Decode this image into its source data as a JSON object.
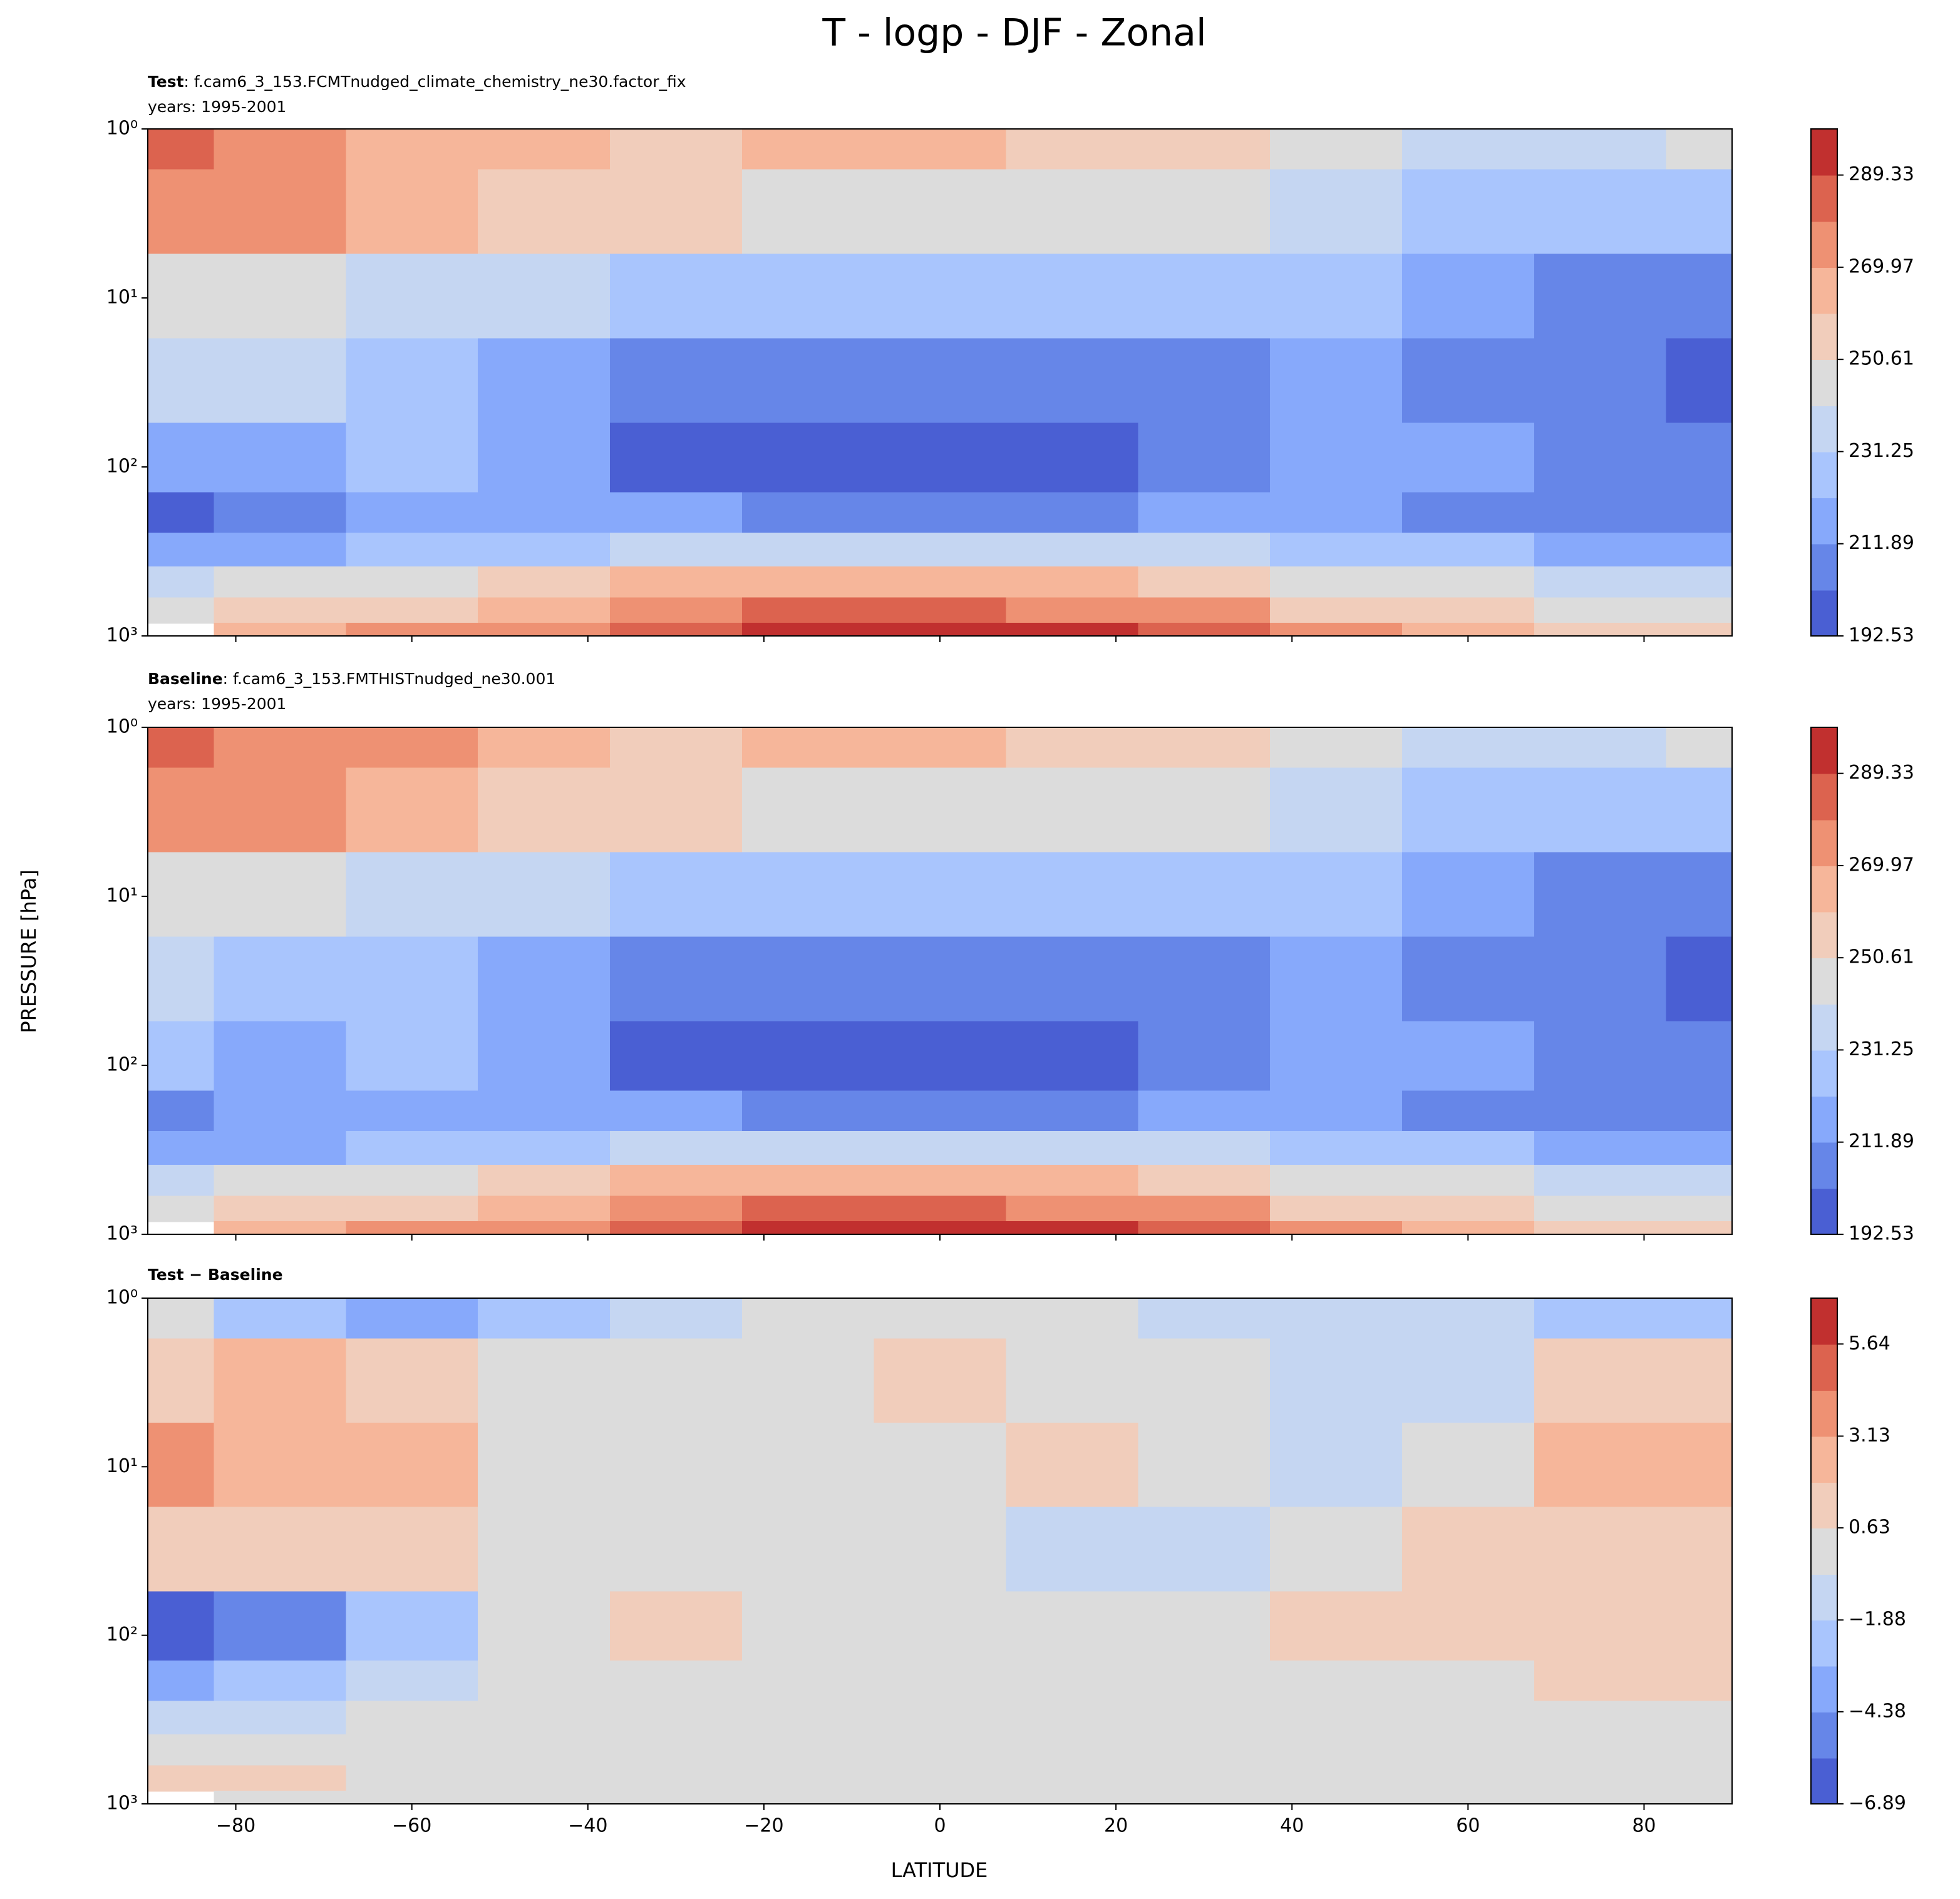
{
  "title": "T - logp - DJF - Zonal",
  "ylabel": "PRESSURE [hPa]",
  "xlabel": "LATITUDE",
  "chart_data": [
    {
      "type": "contour",
      "label": "Test",
      "case": ": f.cam6_3_153.FCMTnudged_climate_chemistry_ne30.factor_fix",
      "years": "years: 1995-2001",
      "x": [
        -90,
        -75,
        -60,
        -45,
        -30,
        -15,
        0,
        15,
        30,
        45,
        60,
        75,
        90
      ],
      "y": [
        1,
        3,
        10,
        30,
        100,
        200,
        300,
        500,
        700,
        1000
      ],
      "values": [
        [
          282,
          275,
          265,
          262,
          258,
          262,
          262,
          257,
          255,
          248,
          238,
          237,
          242
        ],
        [
          274,
          272,
          265,
          257,
          253,
          248,
          248,
          246,
          244,
          237,
          228,
          227,
          227
        ],
        [
          245,
          243,
          238,
          235,
          229,
          226,
          226,
          225,
          225,
          223,
          218,
          210,
          208
        ],
        [
          233,
          232,
          226,
          218,
          210,
          207,
          206,
          207,
          210,
          217,
          210,
          206,
          200
        ],
        [
          218,
          216,
          224,
          214,
          201,
          198,
          197,
          198,
          204,
          215,
          215,
          207,
          206
        ],
        [
          201,
          210,
          216,
          215,
          213,
          210,
          209,
          210,
          212,
          214,
          211,
          209,
          210
        ],
        [
          218,
          220,
          225,
          228,
          234,
          236,
          236,
          236,
          232,
          228,
          224,
          220,
          219
        ],
        [
          235,
          244,
          248,
          255,
          263,
          266,
          266,
          265,
          258,
          250,
          245,
          240,
          238
        ],
        [
          245,
          256,
          260,
          267,
          276,
          281,
          282,
          279,
          270,
          260,
          255,
          250,
          249
        ],
        [
          null,
          268,
          272,
          279,
          286,
          292,
          293,
          291,
          283,
          276,
          268,
          258,
          255
        ]
      ],
      "xlim": [
        -90,
        90
      ],
      "ylim": [
        1000,
        1
      ],
      "yscale": "log",
      "xticks": [
        {
          "value": -80,
          "label": "−80"
        },
        {
          "value": -60,
          "label": "−60"
        },
        {
          "value": -40,
          "label": "−40"
        },
        {
          "value": -20,
          "label": "−20"
        },
        0,
        20,
        40,
        60,
        80
      ],
      "yticks": [
        {
          "value": 1,
          "label": "10⁰"
        },
        {
          "value": 10,
          "label": "10¹"
        },
        {
          "value": 100,
          "label": "10²"
        },
        {
          "value": 1000,
          "label": "10³"
        }
      ],
      "levels": [
        192.53,
        202.21,
        211.89,
        221.57,
        231.25,
        240.93,
        250.61,
        260.29,
        269.97,
        279.65,
        289.33,
        299.01
      ],
      "colors": [
        "#4a5fd3",
        "#6686e8",
        "#87a9fb",
        "#a9c5fd",
        "#c5d6f2",
        "#dcdcdc",
        "#f1cdbb",
        "#f6b69a",
        "#ee9173",
        "#dc634f",
        "#c1302f"
      ],
      "cticks": [
        192.53,
        211.89,
        231.25,
        250.61,
        269.97,
        289.33
      ]
    },
    {
      "type": "contour",
      "label": "Baseline",
      "case": ": f.cam6_3_153.FMTHISTnudged_ne30.001",
      "years": "years: 1995-2001",
      "x": [
        -90,
        -75,
        -60,
        -45,
        -30,
        -15,
        0,
        15,
        30,
        45,
        60,
        75,
        90
      ],
      "y": [
        1,
        3,
        10,
        30,
        100,
        200,
        300,
        500,
        700,
        1000
      ],
      "values": [
        [
          283,
          278,
          270,
          264,
          259,
          262,
          262,
          258,
          256,
          249,
          240,
          239,
          243
        ],
        [
          272,
          270,
          263,
          256,
          253,
          248,
          247,
          246,
          244,
          238,
          229,
          226,
          225
        ],
        [
          241,
          241,
          236,
          234,
          229,
          226,
          226,
          224,
          225,
          224,
          218,
          208,
          206
        ],
        [
          232,
          231,
          225,
          218,
          210,
          207,
          206,
          208,
          211,
          217,
          209,
          205,
          199
        ],
        [
          224,
          221,
          225,
          214,
          200,
          197,
          196,
          198,
          204,
          214,
          214,
          206,
          205
        ],
        [
          205,
          213,
          218,
          215,
          213,
          210,
          209,
          210,
          212,
          214,
          211,
          208,
          209
        ],
        [
          219,
          221,
          225,
          228,
          234,
          236,
          236,
          236,
          232,
          228,
          224,
          220,
          219
        ],
        [
          235,
          244,
          248,
          255,
          263,
          266,
          266,
          265,
          258,
          250,
          245,
          240,
          238
        ],
        [
          244,
          255,
          260,
          267,
          276,
          281,
          282,
          279,
          270,
          260,
          255,
          250,
          249
        ],
        [
          null,
          268,
          272,
          279,
          286,
          292,
          293,
          291,
          283,
          276,
          268,
          258,
          255
        ]
      ],
      "xlim": [
        -90,
        90
      ],
      "ylim": [
        1000,
        1
      ],
      "yscale": "log",
      "xticks": [
        {
          "value": -80,
          "label": "−80"
        },
        {
          "value": -60,
          "label": "−60"
        },
        {
          "value": -40,
          "label": "−40"
        },
        {
          "value": -20,
          "label": "−20"
        },
        0,
        20,
        40,
        60,
        80
      ],
      "yticks": [
        {
          "value": 1,
          "label": "10⁰"
        },
        {
          "value": 10,
          "label": "10¹"
        },
        {
          "value": 100,
          "label": "10²"
        },
        {
          "value": 1000,
          "label": "10³"
        }
      ],
      "levels": [
        192.53,
        202.21,
        211.89,
        221.57,
        231.25,
        240.93,
        250.61,
        260.29,
        269.97,
        279.65,
        289.33,
        299.01
      ],
      "colors": [
        "#4a5fd3",
        "#6686e8",
        "#87a9fb",
        "#a9c5fd",
        "#c5d6f2",
        "#dcdcdc",
        "#f1cdbb",
        "#f6b69a",
        "#ee9173",
        "#dc634f",
        "#c1302f"
      ],
      "cticks": [
        192.53,
        211.89,
        231.25,
        250.61,
        269.97,
        289.33
      ]
    },
    {
      "type": "contour",
      "label": "Test − Baseline",
      "x": [
        -90,
        -75,
        -60,
        -45,
        -30,
        -15,
        0,
        15,
        30,
        45,
        60,
        75,
        90
      ],
      "y": [
        1,
        3,
        10,
        30,
        100,
        200,
        300,
        500,
        700,
        1000
      ],
      "values": [
        [
          0,
          -3,
          -3.5,
          -2,
          -1,
          -0.5,
          0,
          -0.5,
          -1,
          -1,
          -1.5,
          -2.5,
          -2
        ],
        [
          1.5,
          2,
          1.5,
          0.5,
          0,
          0,
          1,
          0,
          0,
          -1,
          -1,
          1,
          1.5
        ],
        [
          4,
          2.5,
          2,
          0.5,
          0,
          0,
          0,
          0.8,
          0,
          -1,
          0,
          2.5,
          2.5
        ],
        [
          0.8,
          1,
          1,
          0,
          0,
          0,
          0,
          -0.8,
          -1,
          0,
          1,
          1.5,
          1.5
        ],
        [
          -6.5,
          -5.5,
          -2,
          0.5,
          0.8,
          0.5,
          0.6,
          0,
          0,
          0.7,
          1,
          1,
          1
        ],
        [
          -4,
          -3,
          -1.5,
          0,
          0,
          0,
          0,
          0,
          0,
          0,
          0,
          0.7,
          0.7
        ],
        [
          -1,
          -0.8,
          0,
          0,
          0,
          0,
          0,
          0,
          0,
          0,
          0,
          0,
          0
        ],
        [
          0,
          0,
          0,
          0,
          0,
          0,
          0,
          0,
          0,
          0,
          0,
          0,
          0
        ],
        [
          1,
          0.7,
          0,
          0,
          0,
          0,
          0,
          0,
          0,
          0,
          0,
          0,
          0
        ],
        [
          null,
          0,
          0,
          0,
          0,
          0,
          0,
          0,
          0,
          0,
          0,
          0,
          0
        ]
      ],
      "xlim": [
        -90,
        90
      ],
      "ylim": [
        1000,
        1
      ],
      "yscale": "log",
      "xticks": [
        {
          "value": -80,
          "label": "−80"
        },
        {
          "value": -60,
          "label": "−60"
        },
        {
          "value": -40,
          "label": "−40"
        },
        {
          "value": -20,
          "label": "−20"
        },
        0,
        20,
        40,
        60,
        80
      ],
      "yticks": [
        {
          "value": 1,
          "label": "10⁰"
        },
        {
          "value": 10,
          "label": "10¹"
        },
        {
          "value": 100,
          "label": "10²"
        },
        {
          "value": 1000,
          "label": "10³"
        }
      ],
      "levels": [
        -6.89,
        -5.64,
        -4.38,
        -3.13,
        -1.88,
        -0.63,
        0.63,
        1.88,
        3.13,
        4.38,
        5.64,
        6.89
      ],
      "colors": [
        "#4a5fd3",
        "#6686e8",
        "#87a9fb",
        "#a9c5fd",
        "#c5d6f2",
        "#dcdcdc",
        "#f1cdbb",
        "#f6b69a",
        "#ee9173",
        "#dc634f",
        "#c1302f"
      ],
      "cticks": [
        {
          "value": -6.89,
          "label": "−6.89"
        },
        {
          "value": -4.38,
          "label": "−4.38"
        },
        {
          "value": -1.88,
          "label": "−1.88"
        },
        0.63,
        3.13,
        5.64
      ]
    }
  ]
}
